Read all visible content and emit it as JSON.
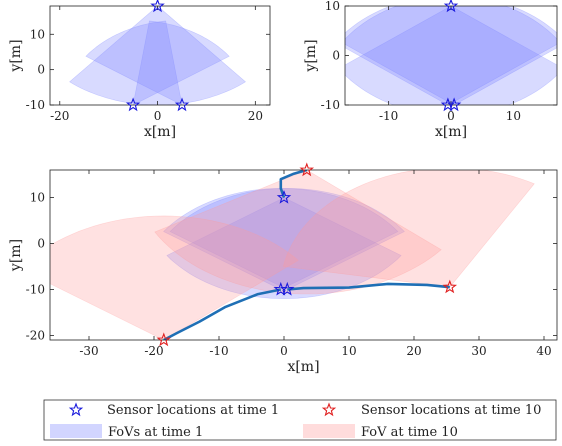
{
  "colors": {
    "fov_time_1": "#7f86ff",
    "fov_time_10": "#ff9a9a",
    "star_time_1": "#1a1adc",
    "star_time_10": "#e01f1f",
    "trajectory": "#1f6fb5"
  },
  "chart_data": [
    {
      "type": "scatter",
      "panel": "top-left",
      "xlabel": "x[m]",
      "ylabel": "y[m]",
      "xlim": [
        -22,
        23
      ],
      "ylim": [
        -10,
        18
      ],
      "xticks": [
        -20,
        0,
        20
      ],
      "yticks": [
        -10,
        0,
        10
      ],
      "sensors": [
        [
          0,
          18
        ],
        [
          -5,
          -10
        ],
        [
          5,
          -10
        ]
      ],
      "fovs": [
        {
          "cx": 0,
          "cy": 18,
          "r": 28,
          "a1": -130,
          "a2": -50
        },
        {
          "cx": -5,
          "cy": -10,
          "r": 24,
          "a1": 35,
          "a2": 82
        },
        {
          "cx": 5,
          "cy": -10,
          "r": 24,
          "a1": 98,
          "a2": 145
        }
      ]
    },
    {
      "type": "scatter",
      "panel": "top-right",
      "xlabel": "x[m]",
      "ylabel": "y[m]",
      "xlim": [
        -17,
        17
      ],
      "ylim": [
        -10,
        10
      ],
      "xticks": [
        -10,
        0,
        10
      ],
      "yticks": [
        -10,
        0,
        10
      ],
      "sensors": [
        [
          0,
          10
        ],
        [
          -0.5,
          -10
        ],
        [
          0.5,
          -10
        ]
      ],
      "fovs": [
        {
          "cx": 0,
          "cy": 10,
          "r": 22,
          "a1": -145,
          "a2": -35
        },
        {
          "cx": -0.5,
          "cy": -10,
          "r": 22,
          "a1": 35,
          "a2": 145
        },
        {
          "cx": 0.5,
          "cy": -10,
          "r": 22,
          "a1": 35,
          "a2": 145
        }
      ]
    },
    {
      "type": "scatter",
      "panel": "bottom",
      "xlabel": "x[m]",
      "ylabel": "y[m]",
      "xlim": [
        -36,
        42
      ],
      "ylim": [
        -21,
        16
      ],
      "xticks": [
        -30,
        -20,
        -10,
        0,
        10,
        20,
        30,
        40
      ],
      "yticks": [
        -20,
        -10,
        0,
        10
      ],
      "sensors_time_1": [
        [
          0,
          10
        ],
        [
          -0.5,
          -10
        ],
        [
          0.5,
          -10
        ]
      ],
      "sensors_time_10": [
        [
          3.5,
          16
        ],
        [
          -18.5,
          -21
        ],
        [
          25.5,
          -9.5
        ]
      ],
      "fovs_time_1": [
        {
          "cx": 0,
          "cy": 10,
          "r": 22,
          "a1": -145,
          "a2": -35
        },
        {
          "cx": -0.5,
          "cy": -10,
          "r": 22,
          "a1": 35,
          "a2": 145
        },
        {
          "cx": 0.5,
          "cy": -10,
          "r": 22,
          "a1": 35,
          "a2": 145
        }
      ],
      "fovs_time_10": [
        {
          "cx": 3.5,
          "cy": 16,
          "r": 27,
          "a1": -150,
          "a2": -40
        },
        {
          "cx": -18.5,
          "cy": -21,
          "r": 27,
          "a1": 40,
          "a2": 145
        },
        {
          "cx": 25.5,
          "cy": -9.5,
          "r": 26,
          "a1": 60,
          "a2": 170
        }
      ],
      "trajectories": [
        [
          [
            0,
            10
          ],
          [
            -0.5,
            12
          ],
          [
            -0.5,
            14
          ],
          [
            1.5,
            15.2
          ],
          [
            3.5,
            16
          ]
        ],
        [
          [
            -0.5,
            -10
          ],
          [
            -4,
            -11
          ],
          [
            -9,
            -13.8
          ],
          [
            -13,
            -17
          ],
          [
            -16.5,
            -19.5
          ],
          [
            -18.5,
            -21
          ]
        ],
        [
          [
            0.5,
            -10
          ],
          [
            3,
            -9.7
          ],
          [
            10,
            -9.6
          ],
          [
            16,
            -8.8
          ],
          [
            22,
            -9
          ],
          [
            25.5,
            -9.5
          ]
        ]
      ]
    }
  ],
  "legend": {
    "entries": [
      {
        "label": "Sensor locations at time 1",
        "marker": "star",
        "color": "#1a1adc"
      },
      {
        "label": "Sensor locations at time 10",
        "marker": "star",
        "color": "#e01f1f"
      },
      {
        "label": "FoVs at time 1",
        "marker": "patch",
        "color": "#7f86ff"
      },
      {
        "label": "FoV at time 10",
        "marker": "patch",
        "color": "#ff9a9a"
      }
    ]
  }
}
